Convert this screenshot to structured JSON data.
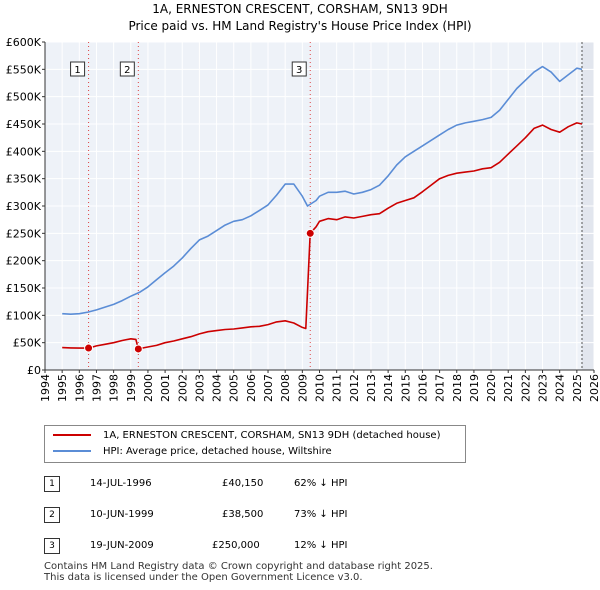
{
  "header": {
    "title": "1A, ERNESTON CRESCENT, CORSHAM, SN13 9DH",
    "subtitle": "Price paid vs. HM Land Registry's House Price Index (HPI)"
  },
  "chart_data": {
    "type": "line",
    "x_range": [
      1994,
      2026
    ],
    "ylim": [
      0,
      600000
    ],
    "y_ticks": [
      0,
      50000,
      100000,
      150000,
      200000,
      250000,
      300000,
      350000,
      400000,
      450000,
      500000,
      550000,
      600000
    ],
    "y_tick_labels": [
      "£0",
      "£50K",
      "£100K",
      "£150K",
      "£200K",
      "£250K",
      "£300K",
      "£350K",
      "£400K",
      "£450K",
      "£500K",
      "£550K",
      "£600K"
    ],
    "x_tick_labels": [
      "1994",
      "1995",
      "1996",
      "1997",
      "1998",
      "1999",
      "2000",
      "2001",
      "2002",
      "2003",
      "2004",
      "2005",
      "2006",
      "2007",
      "2008",
      "2009",
      "2010",
      "2011",
      "2012",
      "2013",
      "2014",
      "2015",
      "2016",
      "2017",
      "2018",
      "2019",
      "2020",
      "2021",
      "2022",
      "2023",
      "2024",
      "2025",
      "2026"
    ],
    "series": [
      {
        "name": "1A, ERNESTON CRESCENT, CORSHAM, SN13 9DH (detached house)",
        "color": "#cc0000",
        "x": [
          1995.0,
          1995.5,
          1996.0,
          1996.54,
          1997.0,
          1997.5,
          1998.0,
          1998.5,
          1999.0,
          1999.3,
          1999.44,
          1999.8,
          2000.5,
          2001.0,
          2001.5,
          2002.0,
          2002.5,
          2003.0,
          2003.5,
          2004.0,
          2004.5,
          2005.0,
          2005.5,
          2006.0,
          2006.5,
          2007.0,
          2007.5,
          2008.0,
          2008.5,
          2009.0,
          2009.2,
          2009.46,
          2009.8,
          2010.0,
          2010.5,
          2011.0,
          2011.5,
          2012.0,
          2012.5,
          2013.0,
          2013.5,
          2014.0,
          2014.5,
          2015.0,
          2015.5,
          2016.0,
          2016.5,
          2017.0,
          2017.5,
          2018.0,
          2018.5,
          2019.0,
          2019.5,
          2020.0,
          2020.5,
          2021.0,
          2021.5,
          2022.0,
          2022.5,
          2023.0,
          2023.5,
          2024.0,
          2024.5,
          2025.0,
          2025.3
        ],
        "values": [
          41000,
          40500,
          40000,
          40150,
          44000,
          47000,
          50000,
          54000,
          57000,
          56000,
          38500,
          41000,
          45000,
          50000,
          53000,
          57000,
          61000,
          66000,
          70000,
          72000,
          74000,
          75000,
          77000,
          79000,
          80000,
          83000,
          88000,
          90000,
          86000,
          78000,
          76000,
          250000,
          262000,
          272000,
          277000,
          275000,
          280000,
          278000,
          281000,
          284000,
          286000,
          296000,
          305000,
          310000,
          315000,
          326000,
          338000,
          350000,
          356000,
          360000,
          362000,
          364000,
          368000,
          370000,
          380000,
          395000,
          410000,
          425000,
          442000,
          448000,
          440000,
          435000,
          445000,
          452000,
          450000
        ]
      },
      {
        "name": "HPI: Average price, detached house, Wiltshire",
        "color": "#5b8dd6",
        "x": [
          1995.0,
          1995.5,
          1996.0,
          1996.5,
          1997.0,
          1997.5,
          1998.0,
          1998.5,
          1999.0,
          1999.5,
          2000.0,
          2000.5,
          2001.0,
          2001.5,
          2002.0,
          2002.5,
          2003.0,
          2003.5,
          2004.0,
          2004.5,
          2005.0,
          2005.5,
          2006.0,
          2006.5,
          2007.0,
          2007.5,
          2008.0,
          2008.5,
          2009.0,
          2009.3,
          2009.8,
          2010.0,
          2010.5,
          2011.0,
          2011.5,
          2012.0,
          2012.5,
          2013.0,
          2013.5,
          2014.0,
          2014.5,
          2015.0,
          2015.5,
          2016.0,
          2016.5,
          2017.0,
          2017.5,
          2018.0,
          2018.5,
          2019.0,
          2019.5,
          2020.0,
          2020.5,
          2021.0,
          2021.5,
          2022.0,
          2022.5,
          2023.0,
          2023.5,
          2024.0,
          2024.5,
          2025.0,
          2025.3
        ],
        "values": [
          103000,
          102000,
          103000,
          106000,
          110000,
          115000,
          120000,
          127000,
          135000,
          142000,
          152000,
          165000,
          178000,
          190000,
          205000,
          222000,
          238000,
          245000,
          255000,
          265000,
          272000,
          275000,
          282000,
          292000,
          302000,
          320000,
          340000,
          340000,
          318000,
          300000,
          310000,
          318000,
          325000,
          325000,
          327000,
          322000,
          325000,
          330000,
          338000,
          355000,
          375000,
          390000,
          400000,
          410000,
          420000,
          430000,
          440000,
          448000,
          452000,
          455000,
          458000,
          462000,
          475000,
          495000,
          515000,
          530000,
          545000,
          555000,
          545000,
          528000,
          540000,
          552000,
          550000
        ]
      }
    ],
    "sales": [
      {
        "num": "1",
        "x": 1996.54,
        "value": 40150
      },
      {
        "num": "2",
        "x": 1999.44,
        "value": 38500
      },
      {
        "num": "3",
        "x": 2009.46,
        "value": 250000
      }
    ],
    "vlines": [
      {
        "label": "1",
        "x": 1996.54
      },
      {
        "label": "2",
        "x": 1999.44
      },
      {
        "label": "3",
        "x": 2009.46
      }
    ],
    "future_shade_from": 2025.3
  },
  "legend": {
    "property_label": "1A, ERNESTON CRESCENT, CORSHAM, SN13 9DH (detached house)",
    "hpi_label": "HPI: Average price, detached house, Wiltshire",
    "property_color": "#cc0000",
    "hpi_color": "#5b8dd6"
  },
  "sales_table": [
    {
      "num": "1",
      "date": "14-JUL-1996",
      "price": "£40,150",
      "hpi": "62% ↓ HPI"
    },
    {
      "num": "2",
      "date": "10-JUN-1999",
      "price": "£38,500",
      "hpi": "73% ↓ HPI"
    },
    {
      "num": "3",
      "date": "19-JUN-2009",
      "price": "£250,000",
      "hpi": "12% ↓ HPI"
    }
  ],
  "footer": {
    "line1": "Contains HM Land Registry data © Crown copyright and database right 2025.",
    "line2": "This data is licensed under the Open Government Licence v3.0."
  }
}
